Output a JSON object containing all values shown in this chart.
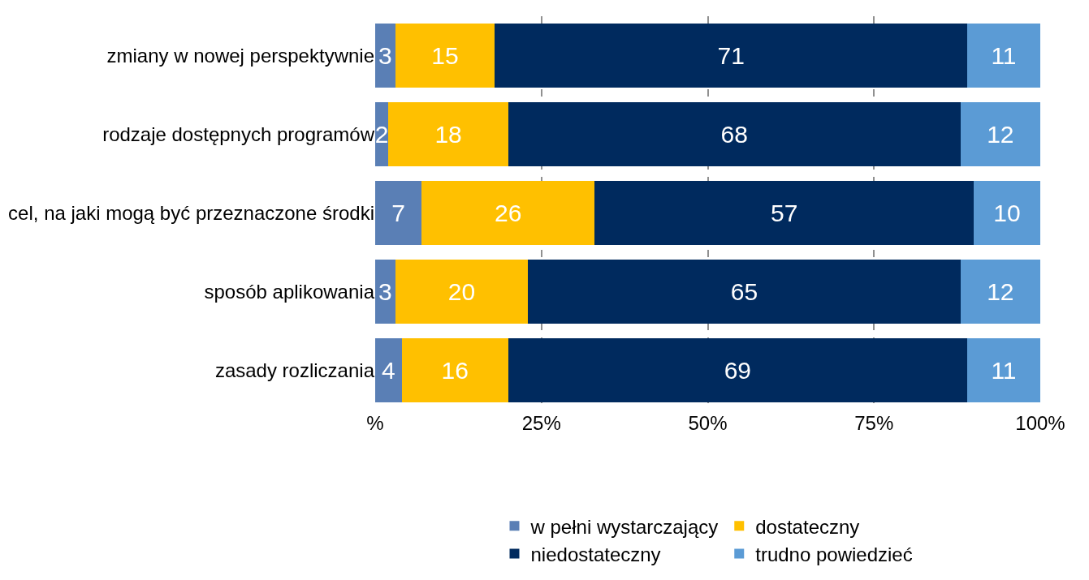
{
  "chart_data": {
    "type": "bar",
    "orientation": "horizontal",
    "stacked": true,
    "categories": [
      "zmiany w nowej perspektywnie",
      "rodzaje dostępnych programów",
      "cel, na jaki mogą być przeznaczone środki",
      "sposób aplikowania",
      "zasady rozliczania"
    ],
    "series": [
      {
        "name": "w pełni wystarczający",
        "color": "#5a7fb5",
        "values": [
          3,
          2,
          7,
          3,
          4
        ]
      },
      {
        "name": "dostateczny",
        "color": "#ffc000",
        "values": [
          15,
          18,
          26,
          20,
          16
        ]
      },
      {
        "name": "niedostateczny",
        "color": "#002a5e",
        "values": [
          71,
          68,
          57,
          65,
          69
        ]
      },
      {
        "name": "trudno powiedzieć",
        "color": "#5b9bd5",
        "values": [
          11,
          12,
          10,
          12,
          11
        ]
      }
    ],
    "xlim": [
      0,
      100
    ],
    "xticks": [
      {
        "value": 0,
        "label": "%"
      },
      {
        "value": 25,
        "label": "25%"
      },
      {
        "value": 50,
        "label": "50%"
      },
      {
        "value": 75,
        "label": "75%"
      },
      {
        "value": 100,
        "label": "100%"
      }
    ],
    "grid": "x",
    "legend": "bottom",
    "data_labels": true
  }
}
